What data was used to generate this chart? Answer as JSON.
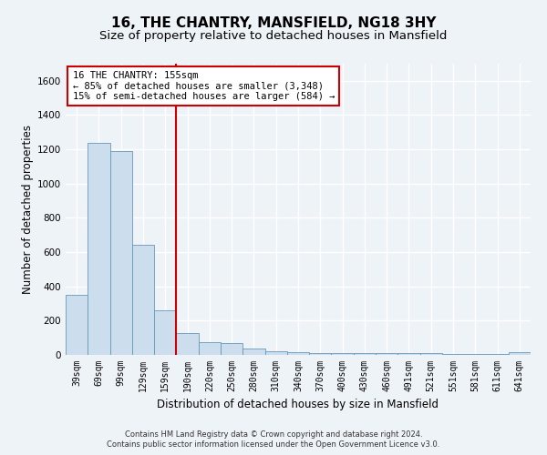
{
  "title": "16, THE CHANTRY, MANSFIELD, NG18 3HY",
  "subtitle": "Size of property relative to detached houses in Mansfield",
  "xlabel": "Distribution of detached houses by size in Mansfield",
  "ylabel": "Number of detached properties",
  "footnote1": "Contains HM Land Registry data © Crown copyright and database right 2024.",
  "footnote2": "Contains public sector information licensed under the Open Government Licence v3.0.",
  "bar_labels": [
    "39sqm",
    "69sqm",
    "99sqm",
    "129sqm",
    "159sqm",
    "190sqm",
    "220sqm",
    "250sqm",
    "280sqm",
    "310sqm",
    "340sqm",
    "370sqm",
    "400sqm",
    "430sqm",
    "460sqm",
    "491sqm",
    "521sqm",
    "551sqm",
    "581sqm",
    "611sqm",
    "641sqm"
  ],
  "bar_values": [
    350,
    1240,
    1190,
    645,
    260,
    125,
    75,
    70,
    35,
    22,
    15,
    12,
    12,
    10,
    10,
    8,
    8,
    5,
    5,
    5,
    15
  ],
  "bar_color": "#ccdded",
  "bar_edge_color": "#6699bb",
  "vline_x": 4.5,
  "vline_color": "#cc0000",
  "annotation_text": "16 THE CHANTRY: 155sqm\n← 85% of detached houses are smaller (3,348)\n15% of semi-detached houses are larger (584) →",
  "annotation_box_color": "#ffffff",
  "annotation_box_edge": "#cc0000",
  "ylim": [
    0,
    1700
  ],
  "yticks": [
    0,
    200,
    400,
    600,
    800,
    1000,
    1200,
    1400,
    1600
  ],
  "bg_color": "#eef3f8",
  "plot_bg_color": "#eef3f8",
  "grid_color": "#ffffff",
  "title_fontsize": 11,
  "subtitle_fontsize": 9.5,
  "axis_label_fontsize": 8.5,
  "tick_fontsize": 7,
  "annotation_fontsize": 7.5,
  "footnote_fontsize": 6
}
